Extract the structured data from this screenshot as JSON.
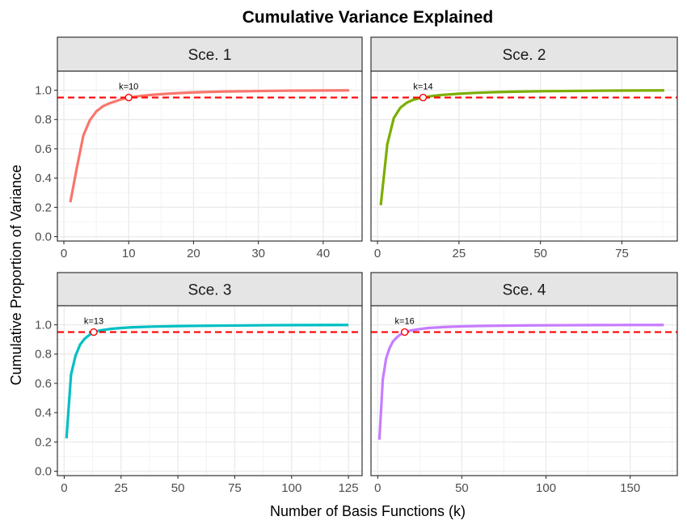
{
  "chart_data": {
    "type": "line",
    "title": "Cumulative Variance Explained",
    "xlabel": "Number of Basis Functions (k)",
    "ylabel": "Cumulative Proportion of Variance",
    "threshold": 0.95,
    "threshold_color": "#ff0000",
    "y_ticks": [
      0.0,
      0.2,
      0.4,
      0.6,
      0.8,
      1.0
    ],
    "y_tick_labels": [
      "0.0",
      "0.2",
      "0.4",
      "0.6",
      "0.8",
      "1.0"
    ],
    "ylim": [
      -0.03,
      1.13
    ],
    "panels": [
      {
        "strip": "Sce. 1",
        "color": "#f8766d",
        "xlim": [
          -1,
          46
        ],
        "x_ticks": [
          0,
          10,
          20,
          30,
          40
        ],
        "x_tick_labels": [
          "0",
          "10",
          "20",
          "30",
          "40"
        ],
        "k": 10,
        "k_label": "k=10",
        "x": [
          1,
          2,
          3,
          4,
          5,
          6,
          7,
          8,
          9,
          10,
          12,
          14,
          16,
          18,
          20,
          22,
          25,
          28,
          31,
          35,
          40,
          44
        ],
        "y": [
          0.235,
          0.47,
          0.69,
          0.795,
          0.855,
          0.89,
          0.91,
          0.925,
          0.94,
          0.951,
          0.962,
          0.97,
          0.976,
          0.981,
          0.985,
          0.988,
          0.991,
          0.993,
          0.995,
          0.997,
          0.998,
          0.999
        ]
      },
      {
        "strip": "Sce. 2",
        "color": "#7cae00",
        "xlim": [
          -2,
          92
        ],
        "x_ticks": [
          0,
          25,
          50,
          75
        ],
        "x_tick_labels": [
          "0",
          "25",
          "50",
          "75"
        ],
        "k": 14,
        "k_label": "k=14",
        "x": [
          1,
          3,
          5,
          7,
          9,
          11,
          14,
          17,
          20,
          25,
          30,
          35,
          40,
          50,
          60,
          70,
          80,
          88
        ],
        "y": [
          0.215,
          0.63,
          0.81,
          0.88,
          0.915,
          0.935,
          0.951,
          0.961,
          0.968,
          0.976,
          0.982,
          0.986,
          0.989,
          0.993,
          0.995,
          0.997,
          0.998,
          0.999
        ]
      },
      {
        "strip": "Sce. 3",
        "color": "#00bfc4",
        "xlim": [
          -3,
          131
        ],
        "x_ticks": [
          0,
          25,
          50,
          75,
          100,
          125
        ],
        "x_tick_labels": [
          "0",
          "25",
          "50",
          "75",
          "100",
          "125"
        ],
        "k": 13,
        "k_label": "k=13",
        "x": [
          1,
          3,
          5,
          7,
          9,
          11,
          13,
          16,
          20,
          25,
          30,
          40,
          50,
          60,
          75,
          90,
          105,
          125
        ],
        "y": [
          0.225,
          0.66,
          0.79,
          0.865,
          0.905,
          0.93,
          0.951,
          0.962,
          0.971,
          0.978,
          0.983,
          0.988,
          0.991,
          0.993,
          0.995,
          0.997,
          0.998,
          0.999
        ]
      },
      {
        "strip": "Sce. 4",
        "color": "#c77cff",
        "xlim": [
          -4,
          178
        ],
        "x_ticks": [
          0,
          50,
          100,
          150
        ],
        "x_tick_labels": [
          "0",
          "50",
          "100",
          "150"
        ],
        "k": 16,
        "k_label": "k=16",
        "x": [
          1,
          3,
          5,
          7,
          9,
          11,
          13,
          16,
          20,
          25,
          30,
          40,
          50,
          60,
          75,
          90,
          110,
          130,
          150,
          170
        ],
        "y": [
          0.215,
          0.625,
          0.77,
          0.84,
          0.885,
          0.91,
          0.93,
          0.951,
          0.962,
          0.971,
          0.978,
          0.985,
          0.989,
          0.992,
          0.994,
          0.996,
          0.997,
          0.998,
          0.999,
          0.999
        ]
      }
    ]
  }
}
